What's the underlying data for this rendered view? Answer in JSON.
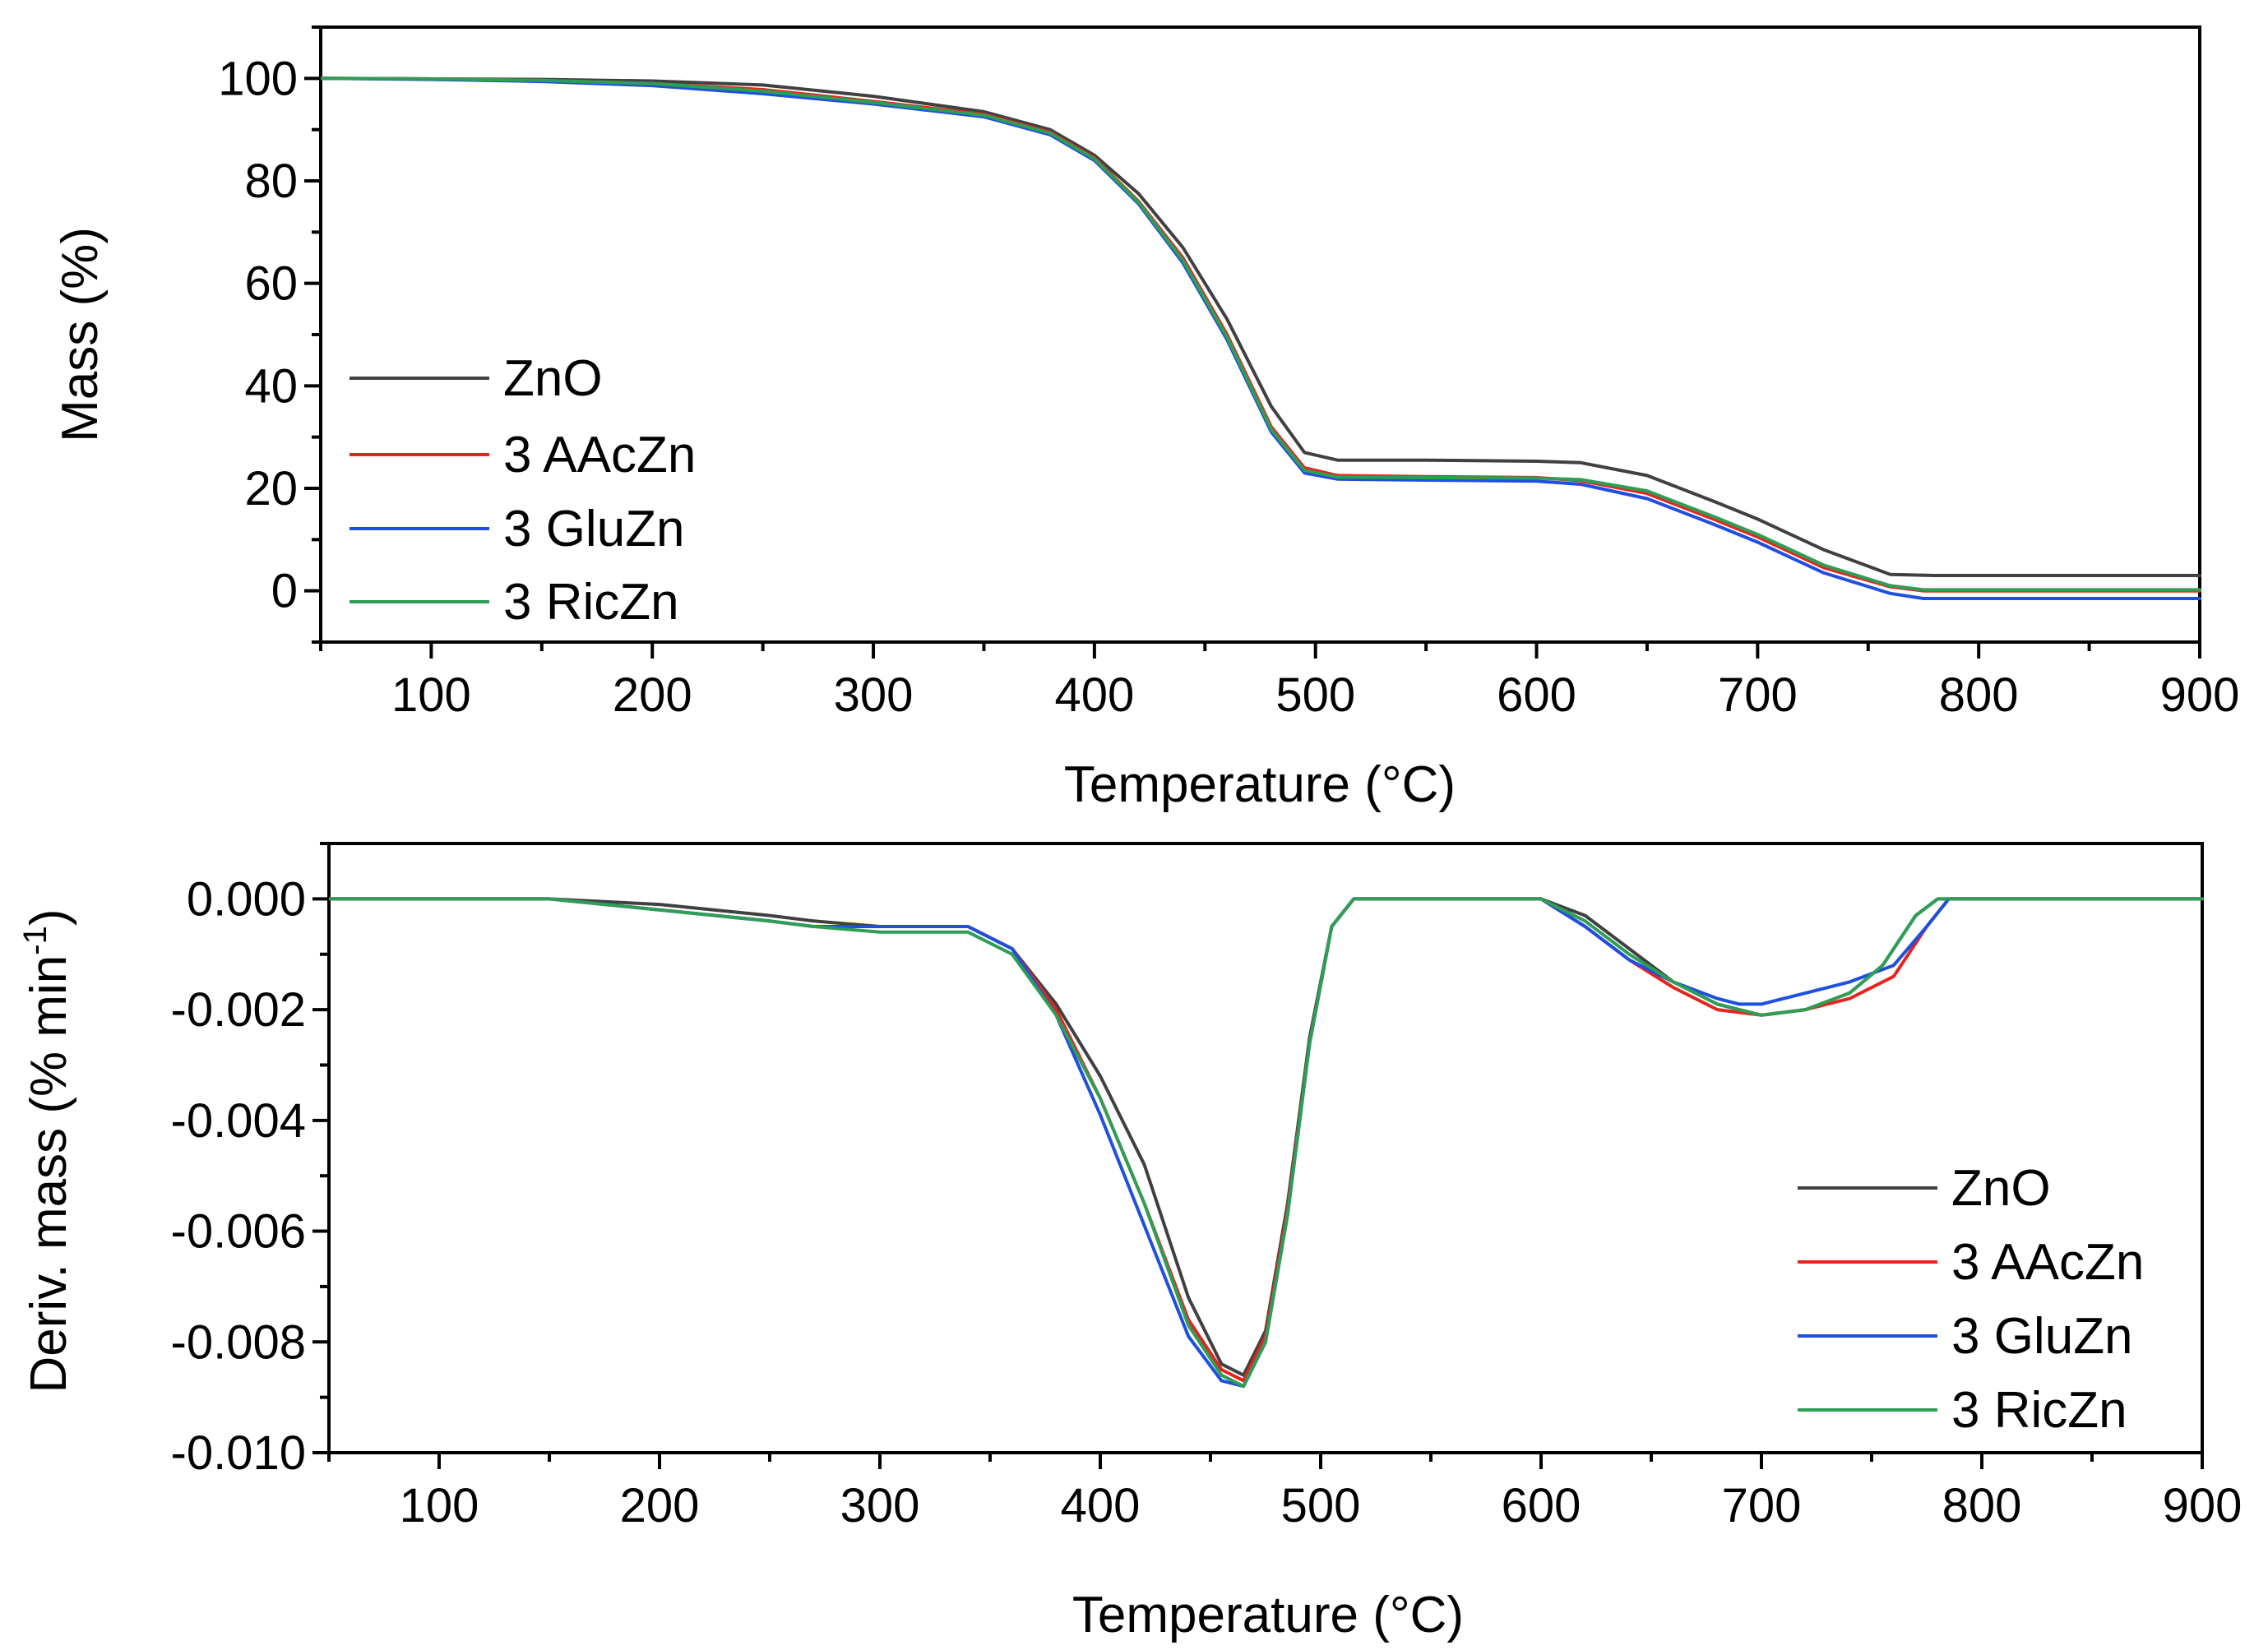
{
  "chart_data": [
    {
      "type": "line",
      "id": "tga",
      "xlabel": "Temperature (°C)",
      "ylabel": "Mass (%)",
      "xlim": [
        50,
        900
      ],
      "ylim": [
        -10,
        110
      ],
      "xticks": [
        100,
        200,
        300,
        400,
        500,
        600,
        700,
        800,
        900
      ],
      "yticks": [
        0,
        20,
        40,
        60,
        80,
        100
      ],
      "legend_position": "center-left",
      "series": [
        {
          "name": "ZnO",
          "color": "#404040",
          "x": [
            50,
            100,
            150,
            200,
            250,
            300,
            350,
            380,
            400,
            420,
            440,
            460,
            480,
            495,
            510,
            550,
            600,
            620,
            650,
            680,
            700,
            730,
            760,
            780,
            850,
            900
          ],
          "y": [
            100,
            99.9,
            99.8,
            99.5,
            98.7,
            96.5,
            93.5,
            90,
            85,
            77.5,
            67,
            53,
            36,
            27,
            25.5,
            25.5,
            25.3,
            25,
            22.5,
            17.5,
            14,
            8,
            3.2,
            3,
            3,
            3
          ]
        },
        {
          "name": "3 AAcZn",
          "color": "#e8231e",
          "x": [
            50,
            100,
            150,
            200,
            250,
            300,
            350,
            380,
            400,
            420,
            440,
            460,
            480,
            495,
            510,
            550,
            600,
            620,
            650,
            680,
            700,
            730,
            760,
            775,
            850,
            900
          ],
          "y": [
            100,
            99.9,
            99.6,
            99,
            97.8,
            95.5,
            93,
            89.5,
            84.5,
            76,
            65,
            50,
            32,
            24,
            22.5,
            22.3,
            22.1,
            21.5,
            19,
            14,
            10.5,
            4.5,
            0.8,
            0,
            0,
            0
          ]
        },
        {
          "name": "3 GluZn",
          "color": "#1f4fe0",
          "x": [
            50,
            100,
            150,
            200,
            250,
            300,
            350,
            380,
            400,
            420,
            440,
            460,
            480,
            495,
            510,
            550,
            600,
            620,
            650,
            680,
            700,
            730,
            760,
            775,
            850,
            900
          ],
          "y": [
            100,
            99.8,
            99.4,
            98.6,
            97,
            95,
            92.5,
            89,
            84,
            75.5,
            64,
            49,
            31,
            23,
            21.8,
            21.6,
            21.4,
            20.8,
            18,
            13,
            9.5,
            3.5,
            -0.5,
            -1.5,
            -1.5,
            -1.5
          ]
        },
        {
          "name": "3 RicZn",
          "color": "#2e9e55",
          "x": [
            50,
            100,
            150,
            200,
            250,
            300,
            350,
            380,
            400,
            420,
            440,
            460,
            480,
            495,
            510,
            550,
            600,
            620,
            650,
            680,
            700,
            730,
            760,
            775,
            850,
            900
          ],
          "y": [
            100,
            99.9,
            99.6,
            99,
            97.5,
            95.3,
            92.8,
            89.3,
            84.3,
            75.8,
            64.5,
            49.5,
            31.5,
            23.5,
            22.2,
            22.1,
            22,
            21.7,
            19.5,
            14.5,
            11,
            5,
            1,
            0.2,
            0.2,
            0.2
          ]
        }
      ]
    },
    {
      "type": "line",
      "id": "dtg",
      "xlabel": "Temperature (°C)",
      "ylabel_main": "Deriv. mass (% min",
      "ylabel_sup": "-1",
      "ylabel_close": ")",
      "xlim": [
        50,
        900
      ],
      "ylim": [
        -0.01,
        0.001
      ],
      "xticks": [
        100,
        200,
        300,
        400,
        500,
        600,
        700,
        800,
        900
      ],
      "yticks": [
        0.0,
        -0.002,
        -0.004,
        -0.006,
        -0.008,
        -0.01
      ],
      "ytick_labels": [
        "0.000",
        "-0.002",
        "-0.004",
        "-0.006",
        "-0.008",
        "-0.010"
      ],
      "legend_position": "bottom-right",
      "series": [
        {
          "name": "ZnO",
          "color": "#404040",
          "x": [
            50,
            150,
            200,
            250,
            270,
            300,
            340,
            360,
            380,
            400,
            420,
            440,
            455,
            465,
            475,
            485,
            495,
            505,
            515,
            550,
            600,
            620,
            640,
            660,
            680,
            700,
            720,
            740,
            755,
            770,
            780,
            800,
            900
          ],
          "y": [
            0,
            0,
            -0.0001,
            -0.0003,
            -0.0004,
            -0.0005,
            -0.0005,
            -0.0009,
            -0.0019,
            -0.0032,
            -0.0048,
            -0.0072,
            -0.0084,
            -0.0086,
            -0.0078,
            -0.0055,
            -0.0025,
            -0.0005,
            0,
            0,
            0,
            -0.0003,
            -0.0009,
            -0.0015,
            -0.0019,
            -0.0021,
            -0.002,
            -0.0017,
            -0.0012,
            -0.0003,
            0,
            0,
            0
          ]
        },
        {
          "name": "3 AAcZn",
          "color": "#e8231e",
          "x": [
            50,
            150,
            200,
            250,
            270,
            300,
            340,
            360,
            380,
            400,
            420,
            440,
            455,
            465,
            475,
            485,
            495,
            505,
            515,
            550,
            600,
            620,
            640,
            660,
            680,
            700,
            720,
            740,
            760,
            775,
            785,
            800,
            900
          ],
          "y": [
            0,
            0,
            -0.0002,
            -0.0004,
            -0.0005,
            -0.0005,
            -0.0005,
            -0.0009,
            -0.002,
            -0.0036,
            -0.0055,
            -0.0076,
            -0.0085,
            -0.0087,
            -0.0079,
            -0.0056,
            -0.0026,
            -0.0005,
            0,
            0,
            0,
            -0.0005,
            -0.0011,
            -0.0016,
            -0.002,
            -0.0021,
            -0.002,
            -0.0018,
            -0.0014,
            -0.0005,
            0,
            0,
            0
          ]
        },
        {
          "name": "3 GluZn",
          "color": "#1f4fe0",
          "x": [
            50,
            150,
            200,
            250,
            270,
            300,
            340,
            360,
            380,
            400,
            420,
            440,
            455,
            465,
            475,
            485,
            495,
            505,
            515,
            550,
            600,
            620,
            640,
            660,
            680,
            690,
            700,
            720,
            740,
            760,
            775,
            785,
            800,
            900
          ],
          "y": [
            0,
            0,
            -0.0002,
            -0.0004,
            -0.0005,
            -0.0005,
            -0.0005,
            -0.0009,
            -0.0021,
            -0.0039,
            -0.0059,
            -0.0079,
            -0.0087,
            -0.0088,
            -0.008,
            -0.0057,
            -0.0026,
            -0.0005,
            0,
            0,
            0,
            -0.0005,
            -0.0011,
            -0.0015,
            -0.0018,
            -0.0019,
            -0.0019,
            -0.0017,
            -0.0015,
            -0.0012,
            -0.0005,
            0,
            0,
            0
          ]
        },
        {
          "name": "3 RicZn",
          "color": "#2e9e55",
          "x": [
            50,
            150,
            200,
            250,
            270,
            300,
            340,
            360,
            380,
            400,
            420,
            440,
            455,
            465,
            475,
            485,
            495,
            505,
            515,
            550,
            600,
            620,
            640,
            660,
            680,
            700,
            720,
            740,
            755,
            770,
            780,
            800,
            900
          ],
          "y": [
            0,
            0,
            -0.0002,
            -0.0004,
            -0.0005,
            -0.0006,
            -0.0006,
            -0.001,
            -0.0021,
            -0.0036,
            -0.0055,
            -0.0077,
            -0.0086,
            -0.0088,
            -0.008,
            -0.0057,
            -0.0026,
            -0.0005,
            0,
            0,
            0,
            -0.0004,
            -0.001,
            -0.0015,
            -0.0019,
            -0.0021,
            -0.002,
            -0.0017,
            -0.0012,
            -0.0003,
            0,
            0,
            0
          ]
        }
      ]
    }
  ]
}
